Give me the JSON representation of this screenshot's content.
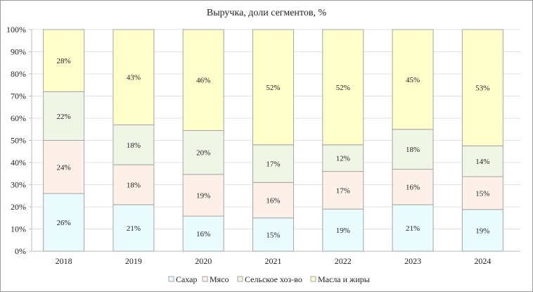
{
  "chart_data": {
    "type": "bar",
    "stacked": "percent",
    "title": "Выручка, доли сегментов, %",
    "xlabel": "",
    "ylabel": "",
    "ylim": [
      0,
      100
    ],
    "yticks": [
      "0%",
      "10%",
      "20%",
      "30%",
      "40%",
      "50%",
      "60%",
      "70%",
      "80%",
      "90%",
      "100%"
    ],
    "grid": true,
    "legend_position": "bottom",
    "categories": [
      "2018",
      "2019",
      "2020",
      "2021",
      "2022",
      "2023",
      "2024"
    ],
    "series": [
      {
        "name": "Сахар",
        "color": "#EAFBFD",
        "values": [
          26,
          21,
          16,
          15,
          19,
          21,
          19
        ]
      },
      {
        "name": "Мясо",
        "color": "#FDF0E8",
        "values": [
          24,
          18,
          19,
          16,
          17,
          16,
          15
        ]
      },
      {
        "name": "Сельское хоз-во",
        "color": "#EFF6E6",
        "values": [
          22,
          18,
          20,
          17,
          12,
          18,
          14
        ]
      },
      {
        "name": "Масла и жиры",
        "color": "#FFFFCC",
        "values": [
          28,
          43,
          46,
          52,
          52,
          45,
          53
        ]
      }
    ]
  }
}
